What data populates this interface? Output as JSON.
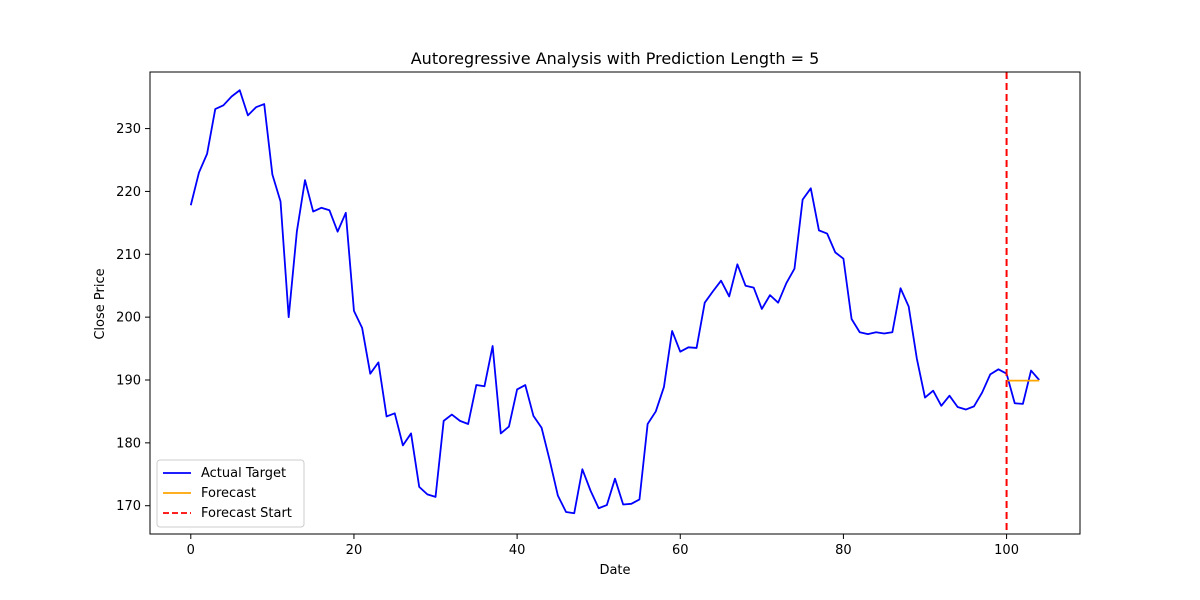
{
  "chart_data": {
    "type": "line",
    "title": "Autoregressive Analysis with Prediction Length = 5",
    "xlabel": "Date",
    "ylabel": "Close Price",
    "xlim": [
      -5,
      109
    ],
    "ylim": [
      165.5,
      239
    ],
    "xticks": [
      0,
      20,
      40,
      60,
      80,
      100
    ],
    "yticks": [
      170,
      180,
      190,
      200,
      210,
      220,
      230
    ],
    "grid": false,
    "legend": {
      "placement": "lower-left"
    },
    "series": [
      {
        "name": "Actual Target",
        "color": "#0000ff",
        "style": "solid",
        "x": [
          0,
          1,
          2,
          3,
          4,
          5,
          6,
          7,
          8,
          9,
          10,
          11,
          12,
          13,
          14,
          15,
          16,
          17,
          18,
          19,
          20,
          21,
          22,
          23,
          24,
          25,
          26,
          27,
          28,
          29,
          30,
          31,
          32,
          33,
          34,
          35,
          36,
          37,
          38,
          39,
          40,
          41,
          42,
          43,
          44,
          45,
          46,
          47,
          48,
          49,
          50,
          51,
          52,
          53,
          54,
          55,
          56,
          57,
          58,
          59,
          60,
          61,
          62,
          63,
          64,
          65,
          66,
          67,
          68,
          69,
          70,
          71,
          72,
          73,
          74,
          75,
          76,
          77,
          78,
          79,
          80,
          81,
          82,
          83,
          84,
          85,
          86,
          87,
          88,
          89,
          90,
          91,
          92,
          93,
          94,
          95,
          96,
          97,
          98,
          99,
          100,
          101,
          102,
          103,
          104
        ],
        "y": [
          217.8,
          223.0,
          226.0,
          233.1,
          233.7,
          235.1,
          236.1,
          232.1,
          233.4,
          233.9,
          222.7,
          218.4,
          200.0,
          213.6,
          221.8,
          216.8,
          217.4,
          217.0,
          213.6,
          216.6,
          201.0,
          198.3,
          191.0,
          192.8,
          184.2,
          184.7,
          179.6,
          181.5,
          173.0,
          171.8,
          171.4,
          183.5,
          184.5,
          183.5,
          183.0,
          189.2,
          189.0,
          195.4,
          181.5,
          182.6,
          188.5,
          189.2,
          184.3,
          182.4,
          177.2,
          171.6,
          169.0,
          168.8,
          175.8,
          172.4,
          169.6,
          170.1,
          174.3,
          170.2,
          170.3,
          171.0,
          183.0,
          185.0,
          188.9,
          197.8,
          194.5,
          195.2,
          195.1,
          202.3,
          204.1,
          205.8,
          203.3,
          208.4,
          205.0,
          204.7,
          201.3,
          203.5,
          202.3,
          205.4,
          207.7,
          218.7,
          220.5,
          213.8,
          213.3,
          210.3,
          209.3,
          199.7,
          197.6,
          197.3,
          197.6,
          197.4,
          197.6,
          204.6,
          201.7,
          193.4,
          187.2,
          188.3,
          185.9,
          187.5,
          185.7,
          185.3,
          185.8,
          188.0,
          190.9,
          191.7,
          191.0,
          186.3,
          186.2,
          191.5,
          190.0
        ]
      },
      {
        "name": "Forecast",
        "color": "#ffa500",
        "style": "solid",
        "x": [
          100,
          101,
          102,
          103,
          104
        ],
        "y": [
          189.9,
          189.9,
          189.9,
          189.9,
          189.9
        ]
      }
    ],
    "vlines": [
      {
        "name": "Forecast Start",
        "x": 100,
        "color": "#ff0000",
        "style": "dashed"
      }
    ]
  }
}
